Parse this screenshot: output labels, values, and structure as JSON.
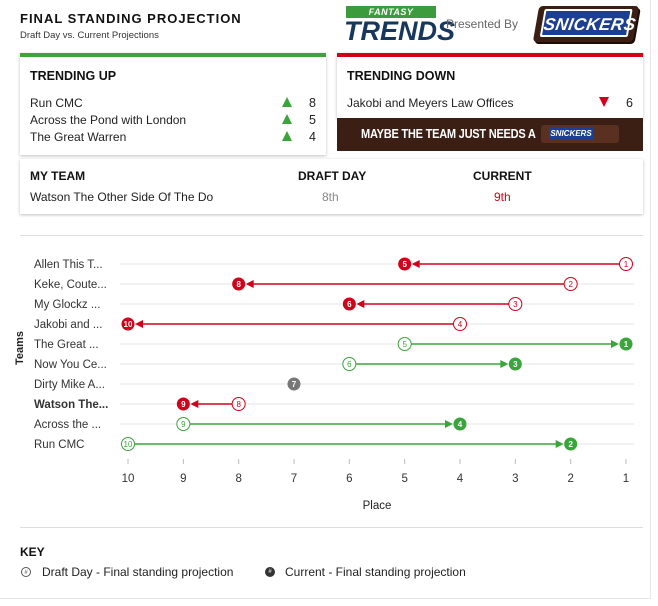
{
  "header": {
    "title": "FINAL STANDING PROJECTION",
    "subtitle": "Draft Day vs. Current Projections",
    "brand_top": "FANTASY",
    "brand_main": "TRENDS",
    "presented_by": "Presented By",
    "sponsor": "SNICKERS"
  },
  "trending_up": {
    "title": "TRENDING UP",
    "items": [
      {
        "team": "Run CMC",
        "value": "8"
      },
      {
        "team": "Across the Pond with London",
        "value": "5"
      },
      {
        "team": "The Great Warren",
        "value": "4"
      }
    ]
  },
  "trending_down": {
    "title": "TRENDING DOWN",
    "items": [
      {
        "team": "Jakobi and Meyers Law Offices",
        "value": "6"
      }
    ]
  },
  "banner": {
    "text": "MAYBE THE TEAM JUST NEEDS A",
    "bar_label": "SNICKERS"
  },
  "my_team": {
    "col_team": "MY TEAM",
    "col_draft": "DRAFT DAY",
    "col_current": "CURRENT",
    "team": "Watson The Other Side Of The Do",
    "draft": "8th",
    "current": "9th"
  },
  "colors": {
    "up": "#3aa53a",
    "down": "#d0021b",
    "neutral": "#777777"
  },
  "chart_data": {
    "type": "scatter",
    "xlabel": "Place",
    "ylabel": "Teams",
    "x_ticks": [
      10,
      9,
      8,
      7,
      6,
      5,
      4,
      3,
      2,
      1
    ],
    "xlim": [
      10,
      1
    ],
    "teams": [
      {
        "label": "Allen This T...",
        "draft": 1,
        "current": 5,
        "bold": false
      },
      {
        "label": "Keke, Coute...",
        "draft": 2,
        "current": 8,
        "bold": false
      },
      {
        "label": "My Glockz ...",
        "draft": 3,
        "current": 6,
        "bold": false
      },
      {
        "label": "Jakobi and ...",
        "draft": 4,
        "current": 10,
        "bold": false
      },
      {
        "label": "The Great ...",
        "draft": 5,
        "current": 1,
        "bold": false
      },
      {
        "label": "Now You Ce...",
        "draft": 6,
        "current": 3,
        "bold": false
      },
      {
        "label": "Dirty Mike A...",
        "draft": 7,
        "current": 7,
        "bold": false
      },
      {
        "label": "Watson The...",
        "draft": 8,
        "current": 9,
        "bold": true
      },
      {
        "label": "Across the ...",
        "draft": 9,
        "current": 4,
        "bold": false
      },
      {
        "label": "Run CMC",
        "draft": 10,
        "current": 2,
        "bold": false
      }
    ]
  },
  "key": {
    "title": "KEY",
    "draft_symbol": "#",
    "draft_label": "Draft Day - Final standing projection",
    "current_symbol": "#",
    "current_label": "Current - Final standing projection"
  }
}
